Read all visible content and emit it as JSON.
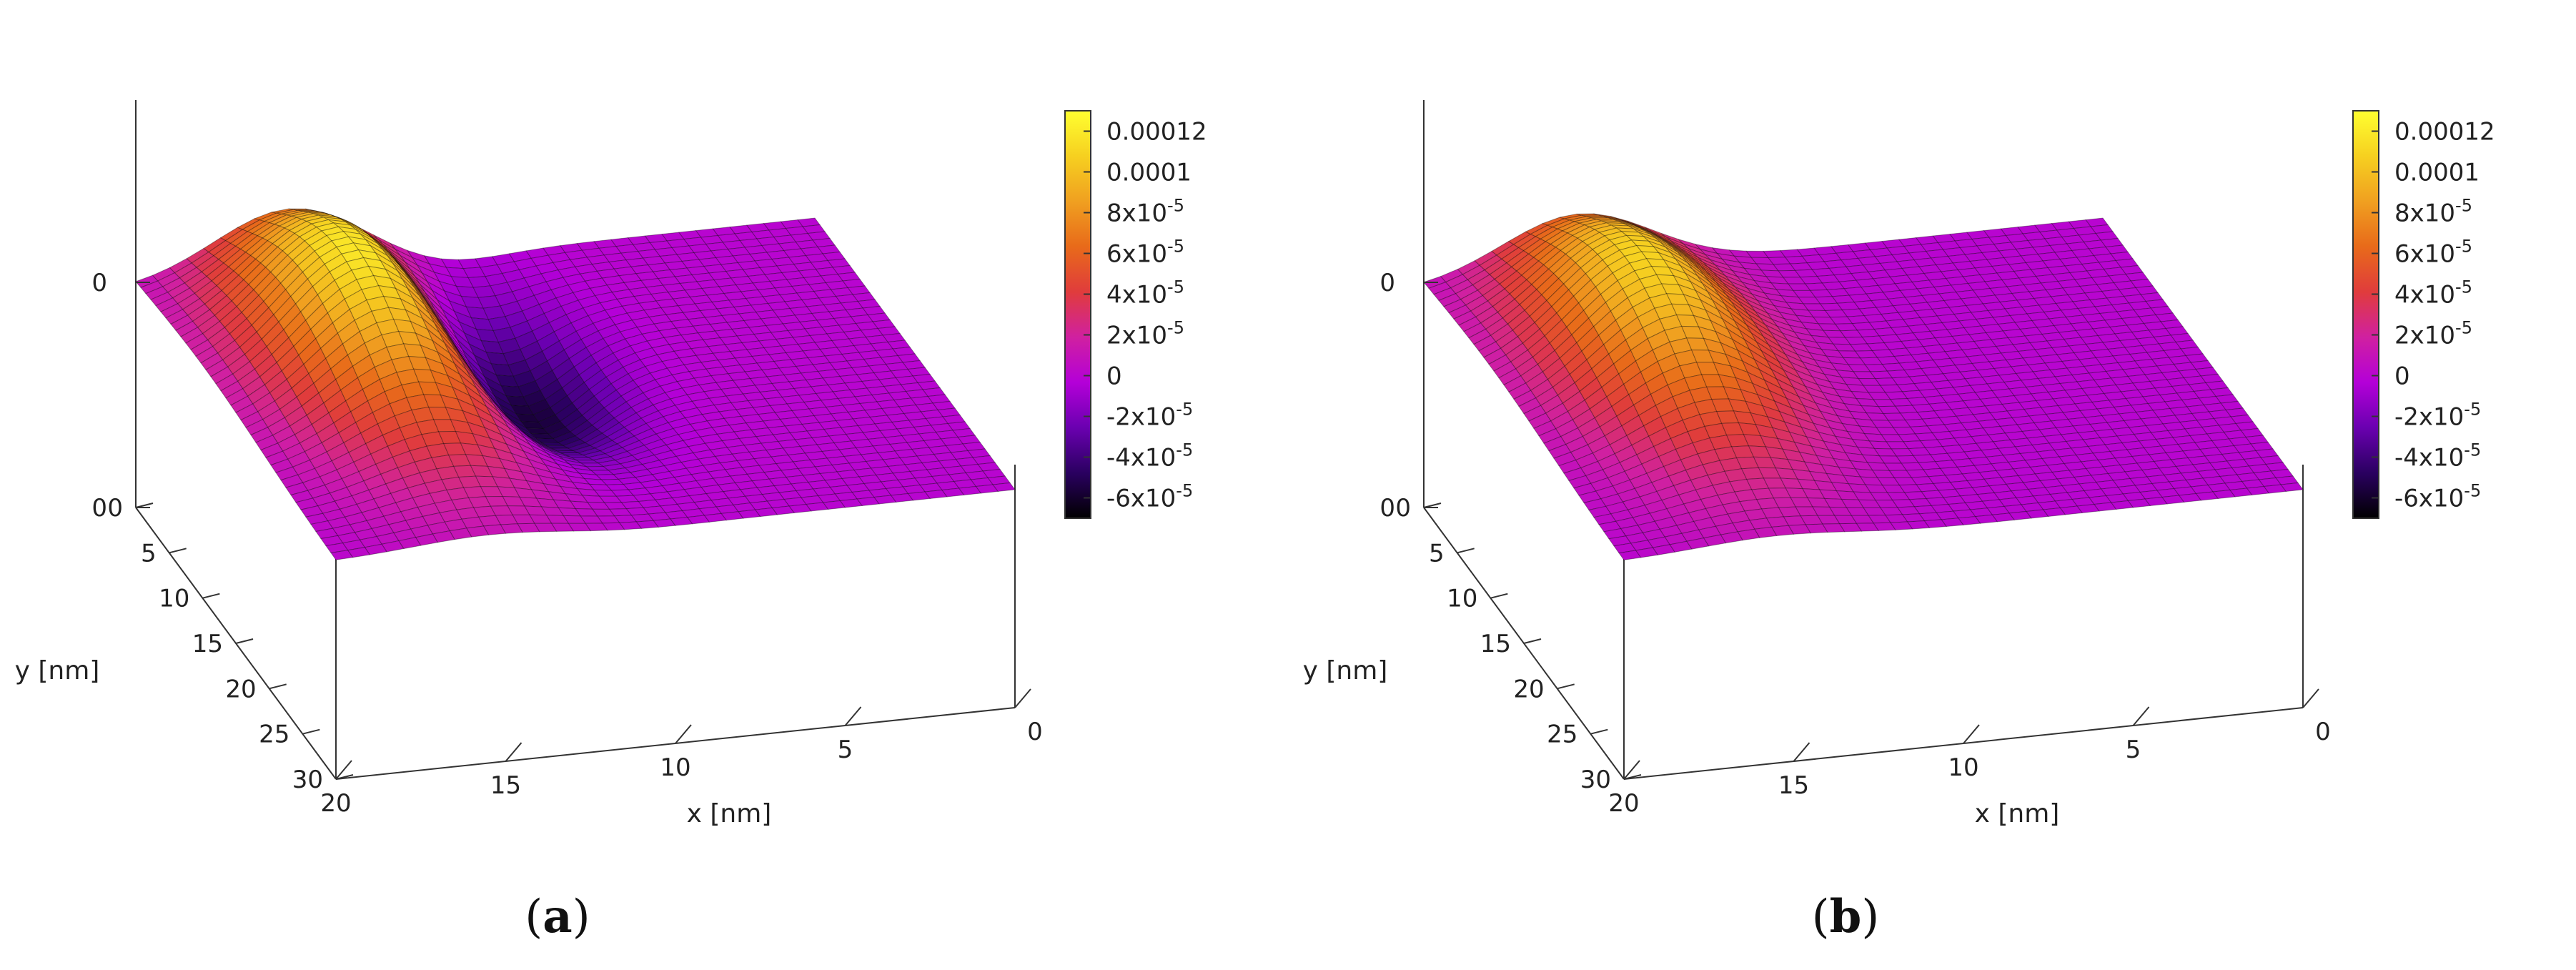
{
  "chart_data": [
    {
      "type": "surface3d",
      "caption_letter": "a",
      "xlabel": "x [nm]",
      "ylabel": "y [nm]",
      "x_ticks": [
        "0",
        "5",
        "10",
        "15",
        "20"
      ],
      "y_ticks": [
        "0",
        "5",
        "10",
        "15",
        "20",
        "25",
        "30"
      ],
      "z_ticks": [
        "0",
        "0"
      ],
      "xlim": [
        0,
        20
      ],
      "ylim": [
        0,
        30
      ],
      "colorbar": {
        "ticks": [
          "0.00012",
          "0.0001",
          "8x10-5",
          "6x10-5",
          "4x10-5",
          "2x10-5",
          "0",
          "-2x10-5",
          "-4x10-5",
          "-6x10-5"
        ],
        "values": [
          0.00012,
          0.0001,
          8e-05,
          6e-05,
          4e-05,
          2e-05,
          0,
          -2e-05,
          -4e-05,
          -6e-05
        ],
        "range": [
          -7e-05,
          0.00013
        ]
      },
      "surface": {
        "description_features": [
          {
            "type": "positive_ridge",
            "x_center": 15.5,
            "y_center": 10,
            "peak": 0.00012
          },
          {
            "type": "negative_well",
            "x_center": 11,
            "y_center": 12,
            "min": -7e-05
          }
        ]
      }
    },
    {
      "type": "surface3d",
      "caption_letter": "b",
      "xlabel": "x [nm]",
      "ylabel": "y [nm]",
      "x_ticks": [
        "0",
        "5",
        "10",
        "15",
        "20"
      ],
      "y_ticks": [
        "0",
        "5",
        "10",
        "15",
        "20",
        "25",
        "30"
      ],
      "z_ticks": [
        "0",
        "0"
      ],
      "xlim": [
        0,
        20
      ],
      "ylim": [
        0,
        30
      ],
      "colorbar": {
        "ticks": [
          "0.00012",
          "0.0001",
          "8x10-5",
          "6x10-5",
          "4x10-5",
          "2x10-5",
          "0",
          "-2x10-5",
          "-4x10-5",
          "-6x10-5"
        ],
        "values": [
          0.00012,
          0.0001,
          8e-05,
          6e-05,
          4e-05,
          2e-05,
          0,
          -2e-05,
          -4e-05,
          -6e-05
        ],
        "range": [
          -7e-05,
          0.00013
        ]
      },
      "surface": {
        "description_features": [
          {
            "type": "positive_ridge",
            "x_center": 15.5,
            "y_center": 10,
            "peak": 0.00011
          }
        ]
      }
    }
  ],
  "colors": {
    "palette": [
      "#000000",
      "#2a0060",
      "#6a00b0",
      "#b400d8",
      "#d020a0",
      "#e03c3c",
      "#e86a1a",
      "#f0a020",
      "#f6d020",
      "#ffff30"
    ]
  }
}
